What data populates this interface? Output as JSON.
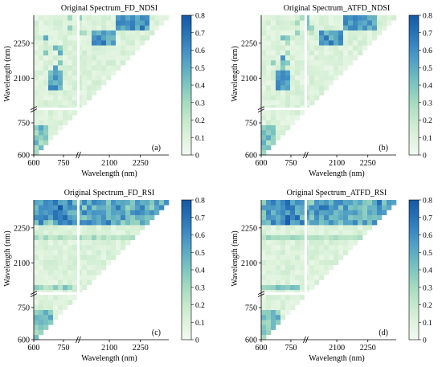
{
  "chart_data": [
    {
      "type": "heatmap",
      "title": "Original Spectrum_FD_NDSI",
      "panel_label": "(a)",
      "xlabel": "Wavelength (nm)",
      "ylabel": "Wavelength (nm)",
      "x_ticks": [
        "600",
        "750",
        "2100",
        "2250"
      ],
      "y_ticks": [
        "2250",
        "2100",
        "750",
        "600"
      ],
      "axis_break": true,
      "colorbar": {
        "min": 0,
        "max": 0.8,
        "ticks": [
          "0",
          "0.1",
          "0.2",
          "0.3",
          "0.4",
          "0.5",
          "0.6",
          "0.7",
          "0.8"
        ]
      },
      "value_range": [
        0,
        0.8
      ]
    },
    {
      "type": "heatmap",
      "title": "Original Spectrum_ATFD_NDSI",
      "panel_label": "(b)",
      "xlabel": "Wavelength (nm)",
      "ylabel": "Wavelength (nm)",
      "x_ticks": [
        "600",
        "750",
        "2100",
        "2250"
      ],
      "y_ticks": [
        "2250",
        "2100",
        "750",
        "600"
      ],
      "axis_break": true,
      "colorbar": {
        "min": 0,
        "max": 0.8,
        "ticks": [
          "0",
          "0.1",
          "0.2",
          "0.3",
          "0.4",
          "0.5",
          "0.6",
          "0.7",
          "0.8"
        ]
      },
      "value_range": [
        0,
        0.8
      ]
    },
    {
      "type": "heatmap",
      "title": "Original Spectrum_FD_RSI",
      "panel_label": "(c)",
      "xlabel": "Wavelength (nm)",
      "ylabel": "Wavelength (nm)",
      "x_ticks": [
        "600",
        "750",
        "2100",
        "2250"
      ],
      "y_ticks": [
        "2250",
        "2100",
        "750",
        "600"
      ],
      "axis_break": true,
      "colorbar": {
        "min": 0,
        "max": 0.8,
        "ticks": [
          "0",
          "0.1",
          "0.2",
          "0.3",
          "0.4",
          "0.5",
          "0.6",
          "0.7",
          "0.8"
        ]
      },
      "value_range": [
        0,
        0.8
      ]
    },
    {
      "type": "heatmap",
      "title": "Original Spectrum_ATFD_RSI",
      "panel_label": "(d)",
      "xlabel": "Wavelength (nm)",
      "ylabel": "Wavelength (nm)",
      "x_ticks": [
        "600",
        "750",
        "2100",
        "2250"
      ],
      "y_ticks": [
        "2250",
        "2100",
        "750",
        "600"
      ],
      "axis_break": true,
      "colorbar": {
        "min": 0,
        "max": 0.8,
        "ticks": [
          "0",
          "0.1",
          "0.2",
          "0.3",
          "0.4",
          "0.5",
          "0.6",
          "0.7",
          "0.8"
        ]
      },
      "value_range": [
        0,
        0.8
      ]
    }
  ],
  "colors": {
    "low": "#f2faf2",
    "mid_low": "#c8ebd0",
    "mid": "#8ccbc6",
    "mid_high": "#4a9ccb",
    "high": "#1a64ad"
  }
}
